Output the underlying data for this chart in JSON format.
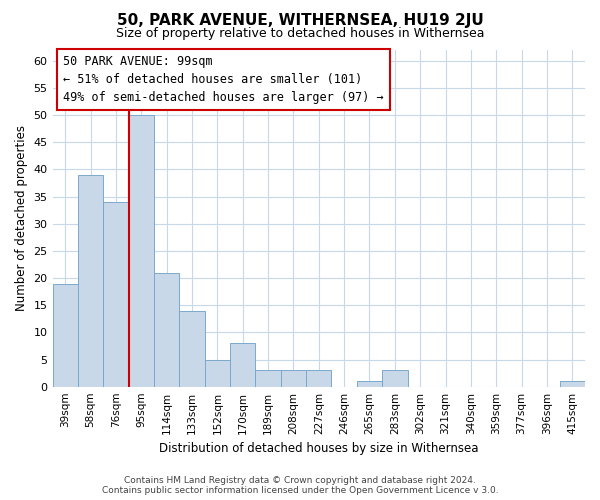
{
  "title": "50, PARK AVENUE, WITHERNSEA, HU19 2JU",
  "subtitle": "Size of property relative to detached houses in Withernsea",
  "xlabel": "Distribution of detached houses by size in Withernsea",
  "ylabel": "Number of detached properties",
  "footer_line1": "Contains HM Land Registry data © Crown copyright and database right 2024.",
  "footer_line2": "Contains public sector information licensed under the Open Government Licence v 3.0.",
  "bar_labels": [
    "39sqm",
    "58sqm",
    "76sqm",
    "95sqm",
    "114sqm",
    "133sqm",
    "152sqm",
    "170sqm",
    "189sqm",
    "208sqm",
    "227sqm",
    "246sqm",
    "265sqm",
    "283sqm",
    "302sqm",
    "321sqm",
    "340sqm",
    "359sqm",
    "377sqm",
    "396sqm",
    "415sqm"
  ],
  "bar_values": [
    19,
    39,
    34,
    50,
    21,
    14,
    5,
    8,
    3,
    3,
    3,
    0,
    1,
    3,
    0,
    0,
    0,
    0,
    0,
    0,
    1
  ],
  "bar_color": "#c8d8e8",
  "bar_edge_color": "#7aa8cc",
  "highlight_bar_index": 3,
  "highlight_line_color": "#cc0000",
  "ylim": [
    0,
    62
  ],
  "yticks": [
    0,
    5,
    10,
    15,
    20,
    25,
    30,
    35,
    40,
    45,
    50,
    55,
    60
  ],
  "annotation_title": "50 PARK AVENUE: 99sqm",
  "annotation_line1": "← 51% of detached houses are smaller (101)",
  "annotation_line2": "49% of semi-detached houses are larger (97) →",
  "background_color": "#ffffff",
  "grid_color": "#c8d8e8"
}
